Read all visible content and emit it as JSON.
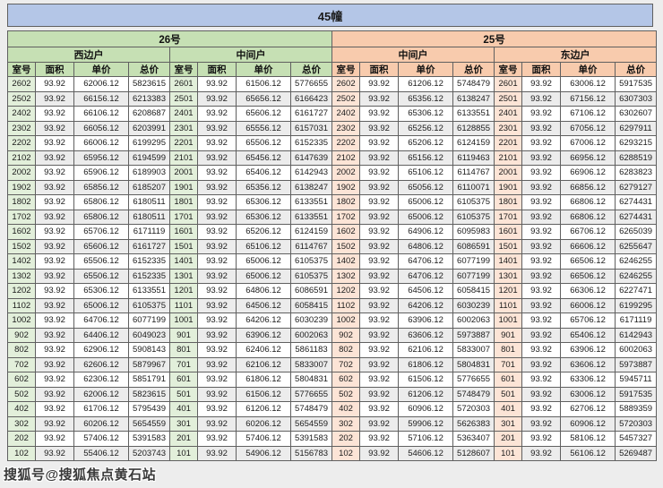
{
  "title": "45幢",
  "watermark": "搜狐号@搜狐焦点黄石站",
  "colors": {
    "title_bg": "#b4c6e7",
    "section_26_bg": "#c6e0b4",
    "section_25_bg": "#f8cbad",
    "room_26_bg": "#e2efda",
    "room_25_bg": "#fce4d6",
    "row_alt_bg": "#ececec",
    "border": "#606060",
    "page_bg": "#ededed",
    "text": "#1b1b1b"
  },
  "chart_data": {
    "type": "table",
    "title": "45幢",
    "columns": [
      "室号",
      "面积",
      "单价",
      "总价"
    ],
    "sections": [
      {
        "label": "26号",
        "units": [
          {
            "label": "西边户",
            "rows": [
              [
                "2602",
                "93.92",
                "62006.12",
                "5823615"
              ],
              [
                "2502",
                "93.92",
                "66156.12",
                "6213383"
              ],
              [
                "2402",
                "93.92",
                "66106.12",
                "6208687"
              ],
              [
                "2302",
                "93.92",
                "66056.12",
                "6203991"
              ],
              [
                "2202",
                "93.92",
                "66006.12",
                "6199295"
              ],
              [
                "2102",
                "93.92",
                "65956.12",
                "6194599"
              ],
              [
                "2002",
                "93.92",
                "65906.12",
                "6189903"
              ],
              [
                "1902",
                "93.92",
                "65856.12",
                "6185207"
              ],
              [
                "1802",
                "93.92",
                "65806.12",
                "6180511"
              ],
              [
                "1702",
                "93.92",
                "65806.12",
                "6180511"
              ],
              [
                "1602",
                "93.92",
                "65706.12",
                "6171119"
              ],
              [
                "1502",
                "93.92",
                "65606.12",
                "6161727"
              ],
              [
                "1402",
                "93.92",
                "65506.12",
                "6152335"
              ],
              [
                "1302",
                "93.92",
                "65506.12",
                "6152335"
              ],
              [
                "1202",
                "93.92",
                "65306.12",
                "6133551"
              ],
              [
                "1102",
                "93.92",
                "65006.12",
                "6105375"
              ],
              [
                "1002",
                "93.92",
                "64706.12",
                "6077199"
              ],
              [
                "902",
                "93.92",
                "64406.12",
                "6049023"
              ],
              [
                "802",
                "93.92",
                "62906.12",
                "5908143"
              ],
              [
                "702",
                "93.92",
                "62606.12",
                "5879967"
              ],
              [
                "602",
                "93.92",
                "62306.12",
                "5851791"
              ],
              [
                "502",
                "93.92",
                "62006.12",
                "5823615"
              ],
              [
                "402",
                "93.92",
                "61706.12",
                "5795439"
              ],
              [
                "302",
                "93.92",
                "60206.12",
                "5654559"
              ],
              [
                "202",
                "93.92",
                "57406.12",
                "5391583"
              ],
              [
                "102",
                "93.92",
                "55406.12",
                "5203743"
              ]
            ]
          },
          {
            "label": "中间户",
            "rows": [
              [
                "2601",
                "93.92",
                "61506.12",
                "5776655"
              ],
              [
                "2501",
                "93.92",
                "65656.12",
                "6166423"
              ],
              [
                "2401",
                "93.92",
                "65606.12",
                "6161727"
              ],
              [
                "2301",
                "93.92",
                "65556.12",
                "6157031"
              ],
              [
                "2201",
                "93.92",
                "65506.12",
                "6152335"
              ],
              [
                "2101",
                "93.92",
                "65456.12",
                "6147639"
              ],
              [
                "2001",
                "93.92",
                "65406.12",
                "6142943"
              ],
              [
                "1901",
                "93.92",
                "65356.12",
                "6138247"
              ],
              [
                "1801",
                "93.92",
                "65306.12",
                "6133551"
              ],
              [
                "1701",
                "93.92",
                "65306.12",
                "6133551"
              ],
              [
                "1601",
                "93.92",
                "65206.12",
                "6124159"
              ],
              [
                "1501",
                "93.92",
                "65106.12",
                "6114767"
              ],
              [
                "1401",
                "93.92",
                "65006.12",
                "6105375"
              ],
              [
                "1301",
                "93.92",
                "65006.12",
                "6105375"
              ],
              [
                "1201",
                "93.92",
                "64806.12",
                "6086591"
              ],
              [
                "1101",
                "93.92",
                "64506.12",
                "6058415"
              ],
              [
                "1001",
                "93.92",
                "64206.12",
                "6030239"
              ],
              [
                "901",
                "93.92",
                "63906.12",
                "6002063"
              ],
              [
                "801",
                "93.92",
                "62406.12",
                "5861183"
              ],
              [
                "701",
                "93.92",
                "62106.12",
                "5833007"
              ],
              [
                "601",
                "93.92",
                "61806.12",
                "5804831"
              ],
              [
                "501",
                "93.92",
                "61506.12",
                "5776655"
              ],
              [
                "401",
                "93.92",
                "61206.12",
                "5748479"
              ],
              [
                "301",
                "93.92",
                "60206.12",
                "5654559"
              ],
              [
                "201",
                "93.92",
                "57406.12",
                "5391583"
              ],
              [
                "101",
                "93.92",
                "54906.12",
                "5156783"
              ]
            ]
          }
        ]
      },
      {
        "label": "25号",
        "units": [
          {
            "label": "中间户",
            "rows": [
              [
                "2602",
                "93.92",
                "61206.12",
                "5748479"
              ],
              [
                "2502",
                "93.92",
                "65356.12",
                "6138247"
              ],
              [
                "2402",
                "93.92",
                "65306.12",
                "6133551"
              ],
              [
                "2302",
                "93.92",
                "65256.12",
                "6128855"
              ],
              [
                "2202",
                "93.92",
                "65206.12",
                "6124159"
              ],
              [
                "2102",
                "93.92",
                "65156.12",
                "6119463"
              ],
              [
                "2002",
                "93.92",
                "65106.12",
                "6114767"
              ],
              [
                "1902",
                "93.92",
                "65056.12",
                "6110071"
              ],
              [
                "1802",
                "93.92",
                "65006.12",
                "6105375"
              ],
              [
                "1702",
                "93.92",
                "65006.12",
                "6105375"
              ],
              [
                "1602",
                "93.92",
                "64906.12",
                "6095983"
              ],
              [
                "1502",
                "93.92",
                "64806.12",
                "6086591"
              ],
              [
                "1402",
                "93.92",
                "64706.12",
                "6077199"
              ],
              [
                "1302",
                "93.92",
                "64706.12",
                "6077199"
              ],
              [
                "1202",
                "93.92",
                "64506.12",
                "6058415"
              ],
              [
                "1102",
                "93.92",
                "64206.12",
                "6030239"
              ],
              [
                "1002",
                "93.92",
                "63906.12",
                "6002063"
              ],
              [
                "902",
                "93.92",
                "63606.12",
                "5973887"
              ],
              [
                "802",
                "93.92",
                "62106.12",
                "5833007"
              ],
              [
                "702",
                "93.92",
                "61806.12",
                "5804831"
              ],
              [
                "602",
                "93.92",
                "61506.12",
                "5776655"
              ],
              [
                "502",
                "93.92",
                "61206.12",
                "5748479"
              ],
              [
                "402",
                "93.92",
                "60906.12",
                "5720303"
              ],
              [
                "302",
                "93.92",
                "59906.12",
                "5626383"
              ],
              [
                "202",
                "93.92",
                "57106.12",
                "5363407"
              ],
              [
                "102",
                "93.92",
                "54606.12",
                "5128607"
              ]
            ]
          },
          {
            "label": "东边户",
            "rows": [
              [
                "2601",
                "93.92",
                "63006.12",
                "5917535"
              ],
              [
                "2501",
                "93.92",
                "67156.12",
                "6307303"
              ],
              [
                "2401",
                "93.92",
                "67106.12",
                "6302607"
              ],
              [
                "2301",
                "93.92",
                "67056.12",
                "6297911"
              ],
              [
                "2201",
                "93.92",
                "67006.12",
                "6293215"
              ],
              [
                "2101",
                "93.92",
                "66956.12",
                "6288519"
              ],
              [
                "2001",
                "93.92",
                "66906.12",
                "6283823"
              ],
              [
                "1901",
                "93.92",
                "66856.12",
                "6279127"
              ],
              [
                "1801",
                "93.92",
                "66806.12",
                "6274431"
              ],
              [
                "1701",
                "93.92",
                "66806.12",
                "6274431"
              ],
              [
                "1601",
                "93.92",
                "66706.12",
                "6265039"
              ],
              [
                "1501",
                "93.92",
                "66606.12",
                "6255647"
              ],
              [
                "1401",
                "93.92",
                "66506.12",
                "6246255"
              ],
              [
                "1301",
                "93.92",
                "66506.12",
                "6246255"
              ],
              [
                "1201",
                "93.92",
                "66306.12",
                "6227471"
              ],
              [
                "1101",
                "93.92",
                "66006.12",
                "6199295"
              ],
              [
                "1001",
                "93.92",
                "65706.12",
                "6171119"
              ],
              [
                "901",
                "93.92",
                "65406.12",
                "6142943"
              ],
              [
                "801",
                "93.92",
                "63906.12",
                "6002063"
              ],
              [
                "701",
                "93.92",
                "63606.12",
                "5973887"
              ],
              [
                "601",
                "93.92",
                "63306.12",
                "5945711"
              ],
              [
                "501",
                "93.92",
                "63006.12",
                "5917535"
              ],
              [
                "401",
                "93.92",
                "62706.12",
                "5889359"
              ],
              [
                "301",
                "93.92",
                "60906.12",
                "5720303"
              ],
              [
                "201",
                "93.92",
                "58106.12",
                "5457327"
              ],
              [
                "101",
                "93.92",
                "56106.12",
                "5269487"
              ]
            ]
          }
        ]
      }
    ]
  }
}
